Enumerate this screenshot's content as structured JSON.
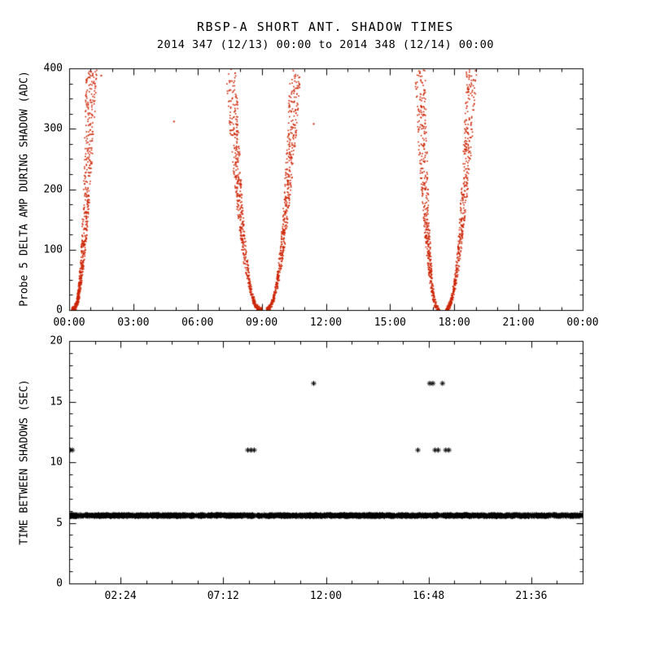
{
  "title": {
    "line1": "RBSP-A SHORT ANT. SHADOW TIMES",
    "line2": "2014 347 (12/13) 00:00 to 2014 348 (12/14) 00:00"
  },
  "colors": {
    "point_red": "#cc2200",
    "point_black": "#000000",
    "axis": "#000000",
    "background": "#ffffff"
  },
  "chart_data": [
    {
      "type": "scatter",
      "panel": "top",
      "title": "RBSP-A SHORT ANT. SHADOW TIMES",
      "subtitle": "2014 347 (12/13) 00:00 to 2014 348 (12/14) 00:00",
      "xlabel": "",
      "ylabel": "Probe 5 DELTA AMP DURING SHADOW (ADC)",
      "xlim": [
        0,
        24
      ],
      "ylim": [
        0,
        400
      ],
      "xticks": {
        "values": [
          0,
          3,
          6,
          9,
          12,
          15,
          18,
          21,
          24
        ],
        "labels": [
          "00:00",
          "03:00",
          "06:00",
          "09:00",
          "12:00",
          "15:00",
          "18:00",
          "21:00",
          "00:00"
        ]
      },
      "yticks": {
        "values": [
          0,
          100,
          200,
          300,
          400
        ],
        "labels": [
          "0",
          "100",
          "200",
          "300",
          "400"
        ]
      },
      "grid": false,
      "legend": "none",
      "marker": "dot",
      "color": "#cc2200",
      "series_desc": "Red dot clusters: rising branch near 00:15-01:30, V shape centered ~09:00 (07:30-10:40), V shape centered ~17:30 (16:20-18:55); amplitude 0-400 ADC, dense near 0",
      "branches": [
        {
          "xc": 0.12,
          "dir": 1,
          "width": 0.95,
          "pow": 2.6,
          "ymax": 430,
          "n": 620,
          "seed": 11
        },
        {
          "xc": 9.02,
          "dir": -1,
          "width": 1.5,
          "pow": 2.5,
          "ymax": 430,
          "n": 560,
          "seed": 22
        },
        {
          "xc": 9.18,
          "dir": 1,
          "width": 1.45,
          "pow": 2.3,
          "ymax": 430,
          "n": 560,
          "seed": 33
        },
        {
          "xc": 17.32,
          "dir": -1,
          "width": 0.95,
          "pow": 2.5,
          "ymax": 430,
          "n": 500,
          "seed": 44
        },
        {
          "xc": 17.55,
          "dir": 1,
          "width": 1.3,
          "pow": 2.3,
          "ymax": 430,
          "n": 500,
          "seed": 55
        }
      ],
      "stray_points": [
        [
          1.5,
          388
        ],
        [
          4.9,
          312
        ],
        [
          11.43,
          308
        ]
      ]
    },
    {
      "type": "scatter",
      "panel": "bottom",
      "title": "",
      "xlabel": "",
      "ylabel": "TIME BETWEEN SHADOWS (SEC)",
      "xlim": [
        0,
        24
      ],
      "ylim": [
        0,
        20
      ],
      "xticks": {
        "values": [
          2.4,
          7.2,
          12,
          16.8,
          21.6
        ],
        "labels": [
          "02:24",
          "07:12",
          "12:00",
          "16:48",
          "21:36"
        ]
      },
      "yticks": {
        "values": [
          0,
          5,
          10,
          15,
          20
        ],
        "labels": [
          "0",
          "5",
          "10",
          "15",
          "20"
        ]
      },
      "grid": false,
      "legend": "none",
      "marker": "asterisk",
      "color": "#000000",
      "series_desc": "Dense band of asterisks at ~5.6 sec across full day with small gaps near 08:40 and 17:20; isolated asterisks at ~11 sec and ~16.5 sec",
      "band": {
        "y": 5.6,
        "y_jitter": 0.07,
        "x0": 0,
        "x1": 24,
        "n": 1500,
        "seed": 7,
        "gaps": [
          [
            8.64,
            8.78
          ],
          [
            17.26,
            17.38
          ]
        ]
      },
      "rows": [
        {
          "y": 11.0,
          "x": [
            0.05,
            0.15,
            8.35,
            8.5,
            8.65,
            16.3,
            17.1,
            17.25,
            17.6,
            17.75
          ]
        },
        {
          "y": 16.5,
          "x": [
            11.43,
            16.85,
            17.0,
            17.45
          ]
        }
      ]
    }
  ]
}
